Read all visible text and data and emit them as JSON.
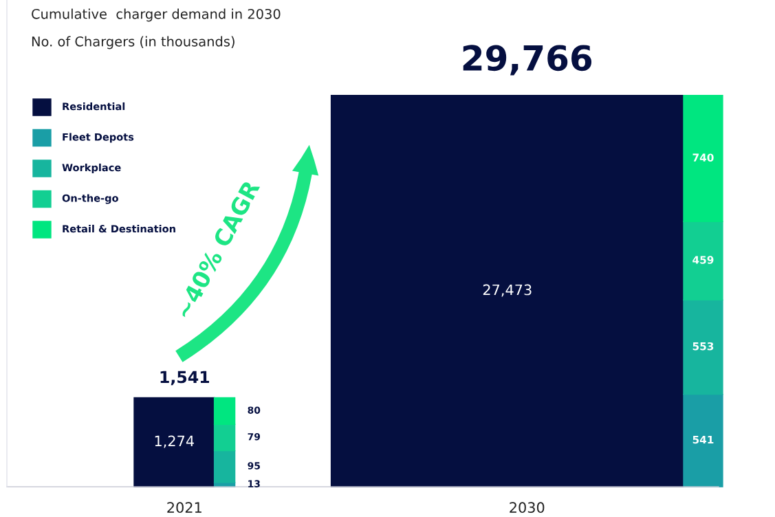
{
  "chart_data": {
    "type": "other",
    "title": "Cumulative  charger demand in 2030",
    "subtitle": "No. of Chargers (in thousands)",
    "categories": [
      "2021",
      "2030"
    ],
    "series": [
      {
        "name": "Residential",
        "color": "#050f40",
        "values": [
          1274,
          27473
        ],
        "value_labels": [
          "1,274",
          "27,473"
        ]
      },
      {
        "name": "Fleet Depots",
        "color": "#1a9ea6",
        "values": [
          13,
          541
        ],
        "value_labels": [
          "13",
          "541"
        ]
      },
      {
        "name": "Workplace",
        "color": "#17b59e",
        "values": [
          95,
          553
        ],
        "value_labels": [
          "95",
          "553"
        ]
      },
      {
        "name": "On-the-go",
        "color": "#12cf92",
        "values": [
          79,
          459
        ],
        "value_labels": [
          "79",
          "459"
        ]
      },
      {
        "name": "Retail & Destination",
        "color": "#00e680",
        "values": [
          80,
          740
        ],
        "value_labels": [
          "80",
          "740"
        ]
      }
    ],
    "totals": [
      "1,541",
      "29,766"
    ],
    "annotations": [
      "~40% CAGR"
    ],
    "legend": "top left"
  }
}
